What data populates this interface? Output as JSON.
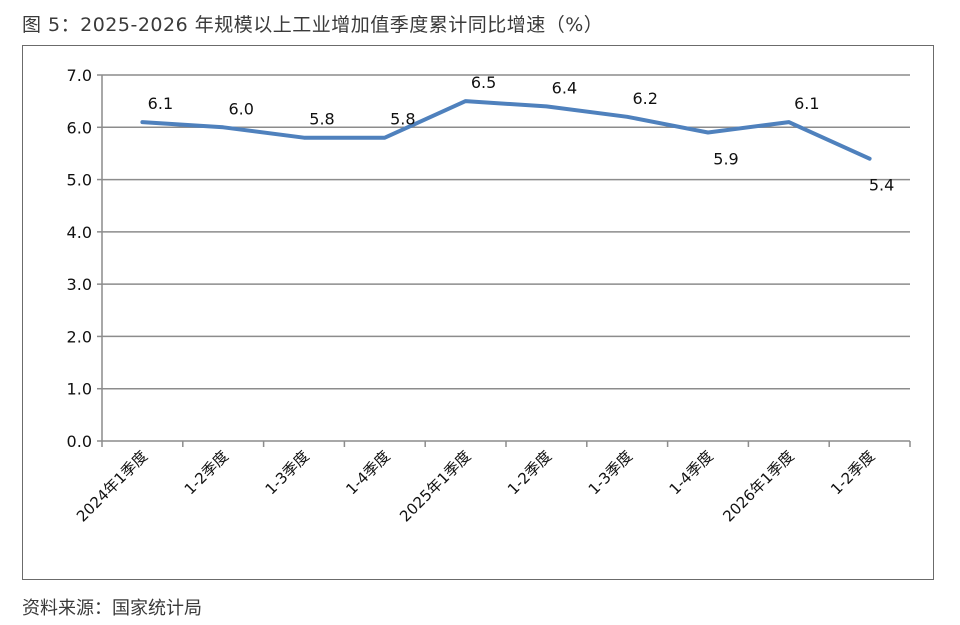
{
  "title": "图 5：2025-2026 年规模以上工业增加值季度累计同比增速（%）",
  "source": "资料来源：国家统计局",
  "chart_data": {
    "type": "line",
    "title": "图 5：2025-2026 年规模以上工业增加值季度累计同比增速（%）",
    "xlabel": "",
    "ylabel": "",
    "ylim": [
      0,
      7
    ],
    "yticks": [
      "0.0",
      "1.0",
      "2.0",
      "3.0",
      "4.0",
      "5.0",
      "6.0",
      "7.0"
    ],
    "grid": true,
    "legend": "none",
    "categories": [
      "2024年1季度",
      "1-2季度",
      "1-3季度",
      "1-4季度",
      "2025年1季度",
      "1-2季度",
      "1-3季度",
      "1-4季度",
      "2026年1季度",
      "1-2季度"
    ],
    "series": [
      {
        "values": [
          6.1,
          6.0,
          5.8,
          5.8,
          6.5,
          6.4,
          6.2,
          5.9,
          6.1,
          5.4
        ],
        "labels": [
          "6.1",
          "6.0",
          "5.8",
          "5.8",
          "6.5",
          "6.4",
          "6.2",
          "5.9",
          "6.1",
          "5.4"
        ],
        "color": "#4f81bd"
      }
    ]
  }
}
